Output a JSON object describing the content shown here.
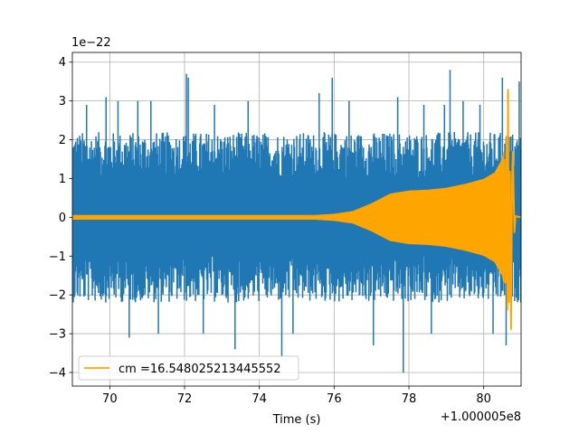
{
  "chart_data": {
    "type": "line",
    "title": "",
    "xlabel": "Time (s)",
    "ylabel": "",
    "xlim": [
      69.0,
      81.0
    ],
    "ylim": [
      -4.35,
      4.25
    ],
    "x_offset_label": "+1.000005e8",
    "y_scale_label": "1e−22",
    "grid": true,
    "legend_position": "lower-left",
    "x_ticks": [
      70,
      72,
      74,
      76,
      78,
      80
    ],
    "x_tick_labels": [
      "70",
      "72",
      "74",
      "76",
      "78",
      "80"
    ],
    "y_ticks": [
      -4,
      -3,
      -2,
      -1,
      0,
      1,
      2,
      3,
      4
    ],
    "y_tick_labels": [
      "−4",
      "−3",
      "−2",
      "−1",
      "0",
      "1",
      "2",
      "3",
      "4"
    ],
    "series": [
      {
        "name": "",
        "color": "#1f77b4",
        "description": "noisy strain data",
        "x_start": 69.0,
        "x_end": 81.0,
        "typical_amplitude": 2.2,
        "spikes": [
          {
            "x": 69.38,
            "y": 2.9
          },
          {
            "x": 69.9,
            "y": 3.1
          },
          {
            "x": 70.22,
            "y": 3.0
          },
          {
            "x": 70.52,
            "y": -3.1
          },
          {
            "x": 70.75,
            "y": 3.0
          },
          {
            "x": 71.1,
            "y": 3.0
          },
          {
            "x": 71.3,
            "y": -3.0
          },
          {
            "x": 72.05,
            "y": 3.7
          },
          {
            "x": 72.1,
            "y": 3.6
          },
          {
            "x": 72.5,
            "y": -3.0
          },
          {
            "x": 72.8,
            "y": 2.9
          },
          {
            "x": 73.35,
            "y": -3.4
          },
          {
            "x": 73.7,
            "y": 3.0
          },
          {
            "x": 74.6,
            "y": -3.6
          },
          {
            "x": 74.9,
            "y": -3.0
          },
          {
            "x": 75.6,
            "y": 3.2
          },
          {
            "x": 75.95,
            "y": 3.6
          },
          {
            "x": 76.4,
            "y": 3.0
          },
          {
            "x": 77.05,
            "y": -3.3
          },
          {
            "x": 77.7,
            "y": 3.1
          },
          {
            "x": 77.85,
            "y": -4.0
          },
          {
            "x": 78.4,
            "y": 2.9
          },
          {
            "x": 78.6,
            "y": -3.0
          },
          {
            "x": 78.95,
            "y": 2.9
          },
          {
            "x": 79.1,
            "y": 3.8
          },
          {
            "x": 79.45,
            "y": 3.0
          },
          {
            "x": 79.9,
            "y": 2.9
          },
          {
            "x": 80.25,
            "y": -3.0
          },
          {
            "x": 80.5,
            "y": 3.6
          },
          {
            "x": 80.6,
            "y": -3.3
          },
          {
            "x": 80.95,
            "y": 3.5
          }
        ]
      },
      {
        "name": "cm =16.548025213445552",
        "color": "#ffa500",
        "description": "chirp template",
        "envelope": [
          {
            "x": 69.0,
            "y": 0.05
          },
          {
            "x": 75.5,
            "y": 0.05
          },
          {
            "x": 76.0,
            "y": 0.08
          },
          {
            "x": 76.5,
            "y": 0.15
          },
          {
            "x": 77.0,
            "y": 0.35
          },
          {
            "x": 77.5,
            "y": 0.6
          },
          {
            "x": 78.0,
            "y": 0.68
          },
          {
            "x": 78.5,
            "y": 0.7
          },
          {
            "x": 79.0,
            "y": 0.75
          },
          {
            "x": 79.5,
            "y": 0.85
          },
          {
            "x": 80.0,
            "y": 0.98
          },
          {
            "x": 80.3,
            "y": 1.15
          },
          {
            "x": 80.5,
            "y": 1.5
          },
          {
            "x": 80.6,
            "y": 2.0
          },
          {
            "x": 80.65,
            "y": 3.3
          },
          {
            "x": 80.7,
            "y": 0.3
          },
          {
            "x": 80.75,
            "y": -2.8
          },
          {
            "x": 80.8,
            "y": 1.7
          },
          {
            "x": 80.85,
            "y": 0.03
          },
          {
            "x": 81.0,
            "y": 0.03
          }
        ]
      }
    ]
  }
}
